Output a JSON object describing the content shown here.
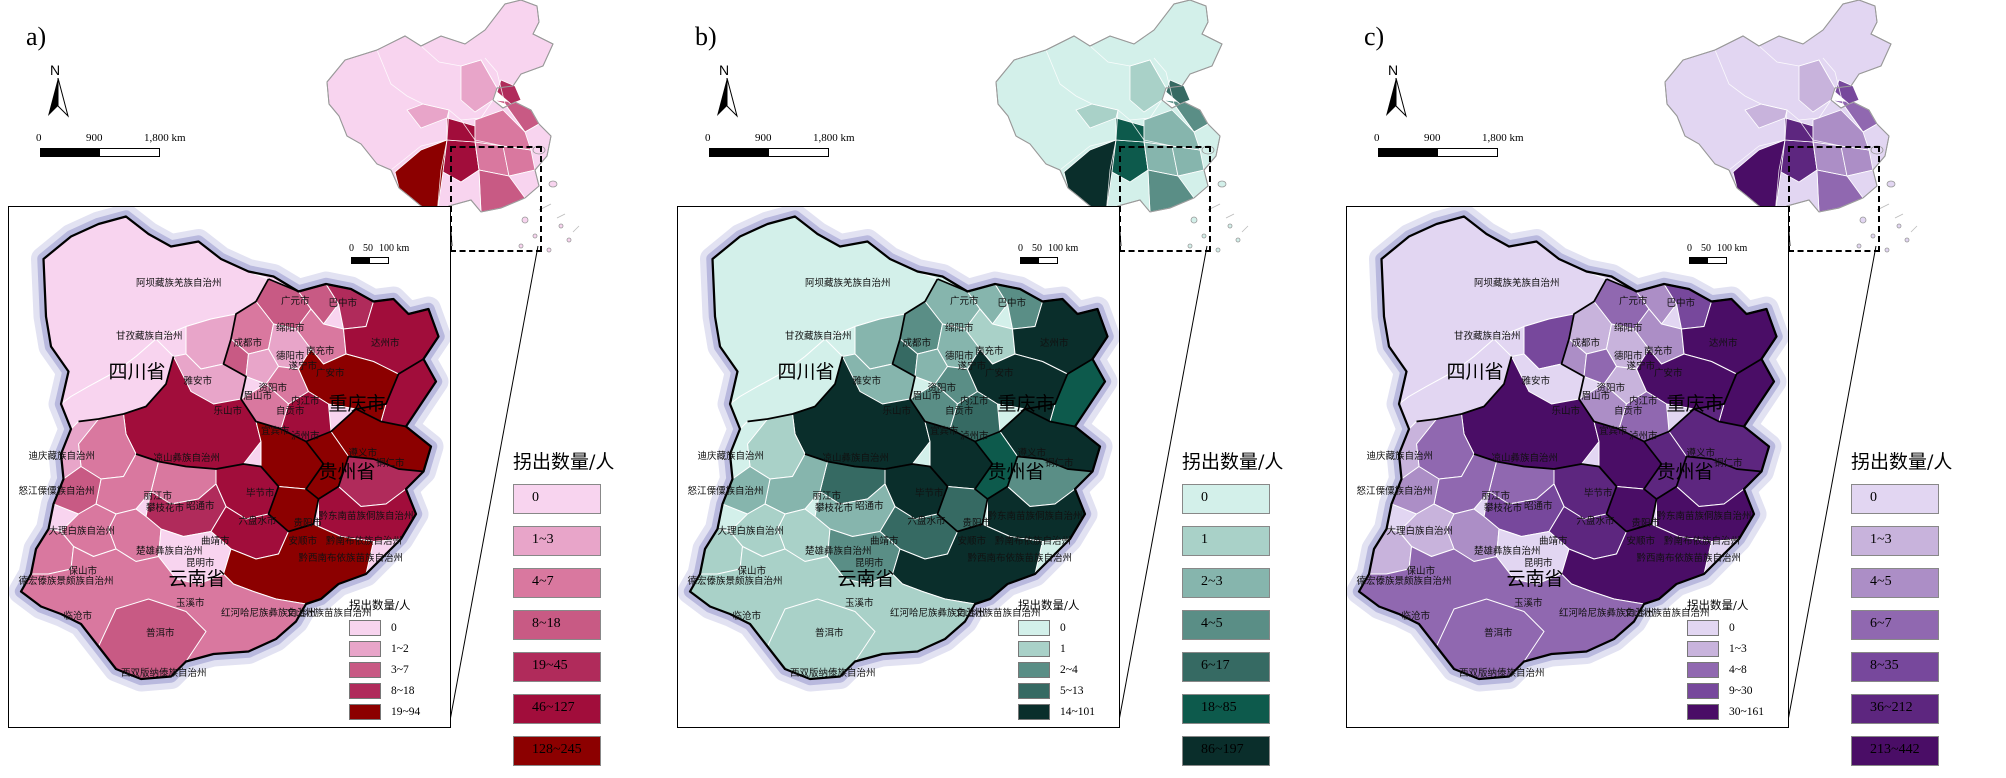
{
  "panels": [
    {
      "label": "a)",
      "north": "N",
      "scale": {
        "s0": "0",
        "s1": "900",
        "s2": "1,800 km"
      },
      "inset_scale": {
        "s0": "0",
        "s1": "50",
        "s2": "100 km"
      },
      "small_legend_title": "拐出数量/人",
      "small_legend": [
        "0",
        "1~2",
        "3~7",
        "8~18",
        "19~94"
      ],
      "big_legend_title": "拐出数量/人",
      "big_legend": [
        "0",
        "1~3",
        "4~7",
        "8~18",
        "19~45",
        "46~127",
        "128~245"
      ],
      "colors": [
        "#f8d4ef",
        "#e8a5c9",
        "#d9789f",
        "#c85a84",
        "#b02b5b",
        "#a10d3b",
        "#8c0000"
      ]
    },
    {
      "label": "b)",
      "north": "N",
      "scale": {
        "s0": "0",
        "s1": "900",
        "s2": "1,800 km"
      },
      "inset_scale": {
        "s0": "0",
        "s1": "50",
        "s2": "100 km"
      },
      "small_legend_title": "拐出数量/人",
      "small_legend": [
        "0",
        "1",
        "2~4",
        "5~13",
        "14~101"
      ],
      "big_legend_title": "拐出数量/人",
      "big_legend": [
        "0",
        "1",
        "2~3",
        "4~5",
        "6~17",
        "18~85",
        "86~197"
      ],
      "colors": [
        "#d3f0ea",
        "#a9d1c8",
        "#86b5ad",
        "#5a8e86",
        "#366a63",
        "#0d5a4c",
        "#0a2e2b"
      ]
    },
    {
      "label": "c)",
      "north": "N",
      "scale": {
        "s0": "0",
        "s1": "900",
        "s2": "1,800 km"
      },
      "inset_scale": {
        "s0": "0",
        "s1": "50",
        "s2": "100 km"
      },
      "small_legend_title": "拐出数量/人",
      "small_legend": [
        "0",
        "1~3",
        "4~8",
        "9~30",
        "30~161"
      ],
      "big_legend_title": "拐出数量/人",
      "big_legend": [
        "0",
        "1~3",
        "4~5",
        "6~7",
        "8~35",
        "36~212",
        "213~442"
      ],
      "colors": [
        "#e2d6f2",
        "#c8b3dc",
        "#ac8ec6",
        "#9068b0",
        "#77489c",
        "#5d267f",
        "#4a0d66"
      ]
    }
  ],
  "provinces": [
    "四川省",
    "重庆市",
    "贵州省",
    "云南省"
  ],
  "cities": [
    "阿坝藏族羌族自治州",
    "广元市",
    "巴中市",
    "绵阳市",
    "甘孜藏族自治州",
    "南充市",
    "达州市",
    "德阳市",
    "遂宁市",
    "成都市",
    "广安市",
    "雅安市",
    "资阳市",
    "眉山市",
    "内江市",
    "乐山市",
    "自贡市",
    "宜宾市",
    "泸州市",
    "迪庆藏族自治州",
    "凉山彝族自治州",
    "遵义市",
    "铜仁市",
    "丽江市",
    "攀枝花市",
    "毕节市",
    "怒江傈僳族自治州",
    "昭通市",
    "贵阳市",
    "黔东南苗族侗族自治州",
    "大理白族自治州",
    "六盘水市",
    "安顺市",
    "黔南布依族自治州",
    "曲靖市",
    "黔西南布依族苗族自治州",
    "楚雄彝族自治州",
    "保山市",
    "昆明市",
    "德宏傣族景颇族自治州",
    "玉溪市",
    "临沧市",
    "红河哈尼族彝族自治州",
    "文山壮族苗族自治州",
    "普洱市",
    "西双版纳傣族自治州"
  ]
}
